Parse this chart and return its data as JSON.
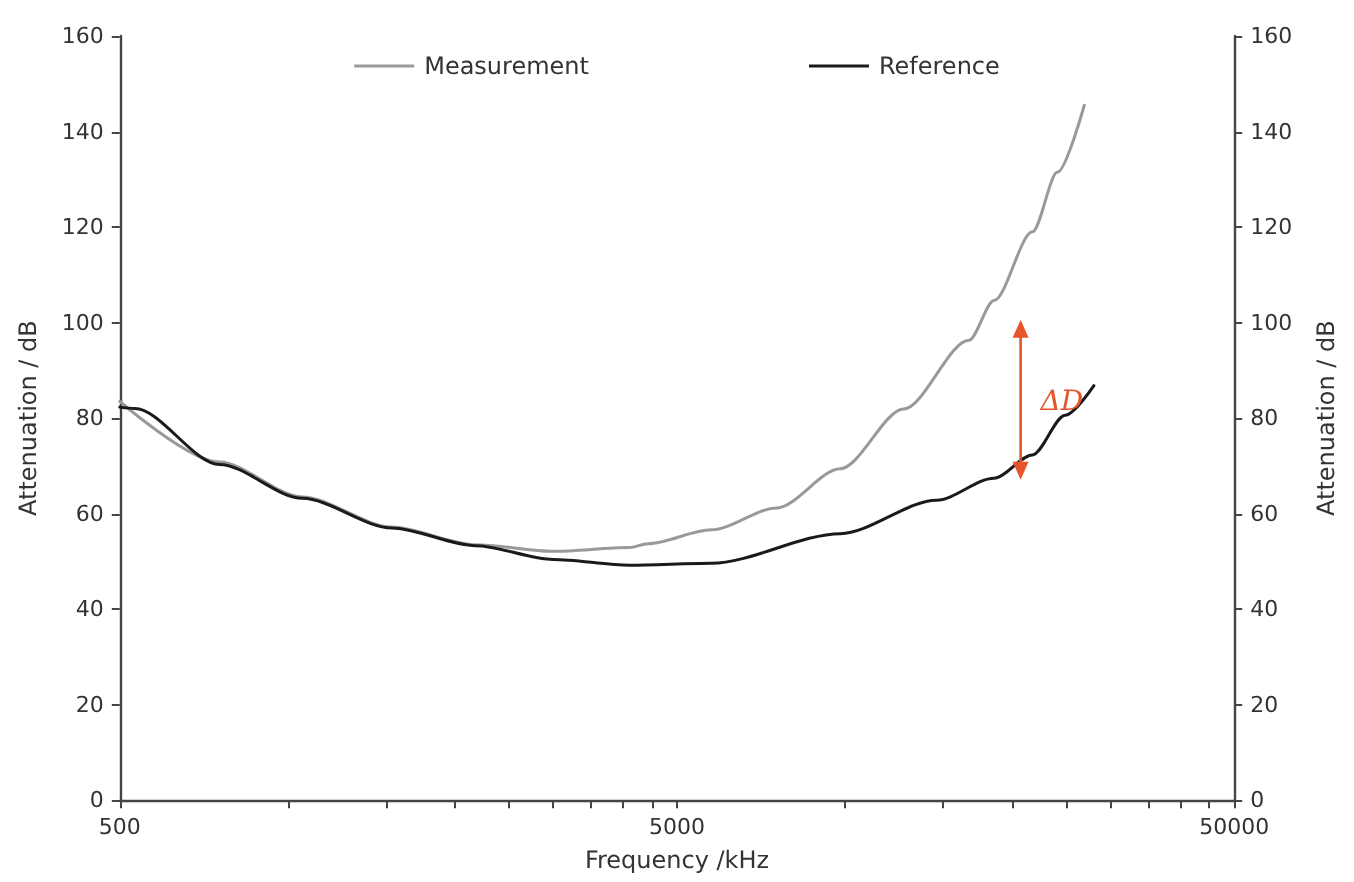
{
  "chart_data": {
    "type": "line",
    "xlabel": "Frequency /kHz",
    "ylabel": "Attenuation / dB",
    "y2label": "Attenuation / dB",
    "log": "x",
    "grid": false,
    "legend": "top",
    "marker": "none",
    "line_style": "solid",
    "xlim": [
      500,
      50000
    ],
    "xticks": [
      500,
      {
        "value": 1000,
        "label": null
      },
      {
        "value": 1500,
        "label": null
      },
      {
        "value": 2000,
        "label": null
      },
      {
        "value": 2500,
        "label": null
      },
      {
        "value": 3000,
        "label": null
      },
      {
        "value": 3500,
        "label": null
      },
      {
        "value": 4000,
        "label": null
      },
      {
        "value": 4500,
        "label": null
      },
      5000,
      {
        "value": 10000,
        "label": null
      },
      {
        "value": 15000,
        "label": null
      },
      {
        "value": 20000,
        "label": null
      },
      {
        "value": 25000,
        "label": null
      },
      {
        "value": 30000,
        "label": null
      },
      {
        "value": 35000,
        "label": null
      },
      {
        "value": 40000,
        "label": null
      },
      {
        "value": 45000,
        "label": null
      },
      50000
    ],
    "ylim": [
      0,
      160
    ],
    "yticks": [
      0,
      20,
      40,
      60,
      80,
      100,
      120,
      140,
      160
    ],
    "y2lim": [
      0,
      160
    ],
    "y2ticks": [
      0,
      20,
      40,
      60,
      80,
      100,
      120,
      140,
      160
    ],
    "series": [
      {
        "name": "Measurement",
        "color": "#999999",
        "x": [
          500,
          755,
          1063,
          1538,
          2174,
          2997,
          4109,
          4436,
          5766,
          7552,
          9821,
          12760,
          16710,
          18530,
          21720,
          24090,
          26910
        ],
        "values": [
          83.5,
          70.8,
          63.5,
          57.2,
          53.5,
          52.1,
          52.9,
          53.7,
          56.6,
          61.2,
          69.4,
          81.9,
          96.3,
          104.6,
          119,
          131.5,
          145.5
        ]
      },
      {
        "name": "Reference",
        "color": "#1a1a1a",
        "x": [
          500,
          532,
          755,
          1063,
          1538,
          2174,
          2997,
          4109,
          5766,
          9821,
          14620,
          18530,
          21720,
          24860,
          28000
        ],
        "values": [
          82.3,
          82,
          70.3,
          63.2,
          57,
          53.3,
          50.4,
          49.2,
          49.6,
          55.8,
          62.8,
          67.4,
          72.3,
          80.6,
          86.8
        ]
      }
    ],
    "annotations": [
      "ΔD"
    ]
  }
}
